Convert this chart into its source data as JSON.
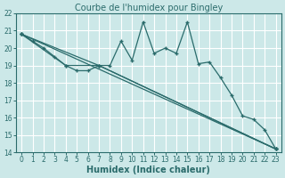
{
  "title": "Courbe de l'humidex pour Bingley",
  "xlabel": "Humidex (Indice chaleur)",
  "bg_color": "#cce8e8",
  "grid_color": "#ffffff",
  "line_color": "#2a6b6b",
  "xlim": [
    -0.5,
    23.5
  ],
  "ylim": [
    14,
    22
  ],
  "xticks": [
    0,
    1,
    2,
    3,
    4,
    5,
    6,
    7,
    8,
    9,
    10,
    11,
    12,
    13,
    14,
    15,
    16,
    17,
    18,
    19,
    20,
    21,
    22,
    23
  ],
  "yticks": [
    14,
    15,
    16,
    17,
    18,
    19,
    20,
    21,
    22
  ],
  "series1_x": [
    0,
    1,
    2,
    3,
    4,
    5,
    6,
    7,
    8,
    9,
    10,
    11,
    12,
    13,
    14,
    15,
    16,
    17,
    18,
    19,
    20,
    21,
    22,
    23
  ],
  "series1_y": [
    20.8,
    20.4,
    20.0,
    19.5,
    19.0,
    18.7,
    18.7,
    19.0,
    19.0,
    20.4,
    19.3,
    21.5,
    19.7,
    20.0,
    19.7,
    21.5,
    19.1,
    19.2,
    18.3,
    17.3,
    16.1,
    15.9,
    15.3,
    14.2
  ],
  "series2_x": [
    0,
    23
  ],
  "series2_y": [
    20.8,
    14.2
  ],
  "series3_x": [
    0,
    7,
    23
  ],
  "series3_y": [
    20.8,
    19.0,
    14.2
  ],
  "series4_x": [
    0,
    4,
    7,
    23
  ],
  "series4_y": [
    20.8,
    19.0,
    19.0,
    14.2
  ],
  "tick_fontsize": 5.5,
  "xlabel_fontsize": 7,
  "title_fontsize": 7
}
